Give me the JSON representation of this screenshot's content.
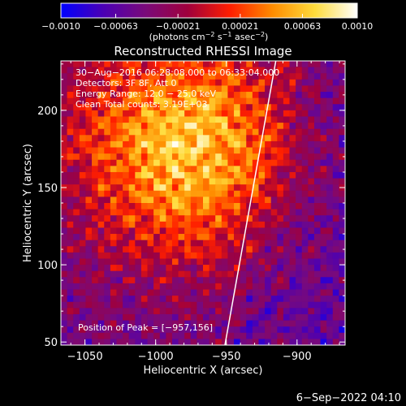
{
  "chart_data": {
    "type": "heatmap",
    "title": "Reconstructed RHESSI Image",
    "colorbar": {
      "min": -0.001,
      "max": 0.001,
      "tick_labels": [
        "−0.0010",
        "−0.00063",
        "−0.00021",
        "0.00021",
        "0.00063",
        "0.0010"
      ],
      "tick_values": [
        -0.001,
        -0.00063,
        -0.00021,
        0.00021,
        0.00063,
        0.001
      ],
      "unit_prefix": "(photons cm",
      "unit_exp1": "−2",
      "unit_mid1": " s",
      "unit_exp2": "−1",
      "unit_mid2": " asec",
      "unit_exp3": "−2",
      "unit_suffix": ")",
      "colors": [
        "#0000ff",
        "#4b00b4",
        "#7a0a7a",
        "#a0003c",
        "#ff1e00",
        "#ff8c00",
        "#ffdc3c",
        "#ffffff"
      ]
    },
    "annotations": {
      "time": "30−Aug−2016 06:28:08.000 to 06:33:04.000",
      "detectors": "Detectors: 3F 8F, Att 0",
      "energy": "Energy Range: 12.0 − 25.0 keV",
      "clean": "Clean     Total counts: 3.19E+03",
      "peak": "Position of Peak = [−957,156]"
    },
    "xlabel": "Heliocentric X (arcsec)",
    "ylabel": "Heliocentric Y (arcsec)",
    "xlim": [
      -1067,
      -866
    ],
    "ylim": [
      48,
      232
    ],
    "x_ticks": [
      -1050,
      -1000,
      -950,
      -900
    ],
    "x_tick_labels": [
      "−1050",
      "−1000",
      "−950",
      "−900"
    ],
    "y_ticks": [
      50,
      100,
      150,
      200
    ],
    "y_tick_labels": [
      "50",
      "100",
      "150",
      "200"
    ],
    "peak": [
      -957,
      156
    ],
    "limb_line": [
      [
        -951,
        48
      ],
      [
        -915,
        232
      ]
    ],
    "grid": false,
    "footer": "6−Sep−2022 04:10"
  }
}
